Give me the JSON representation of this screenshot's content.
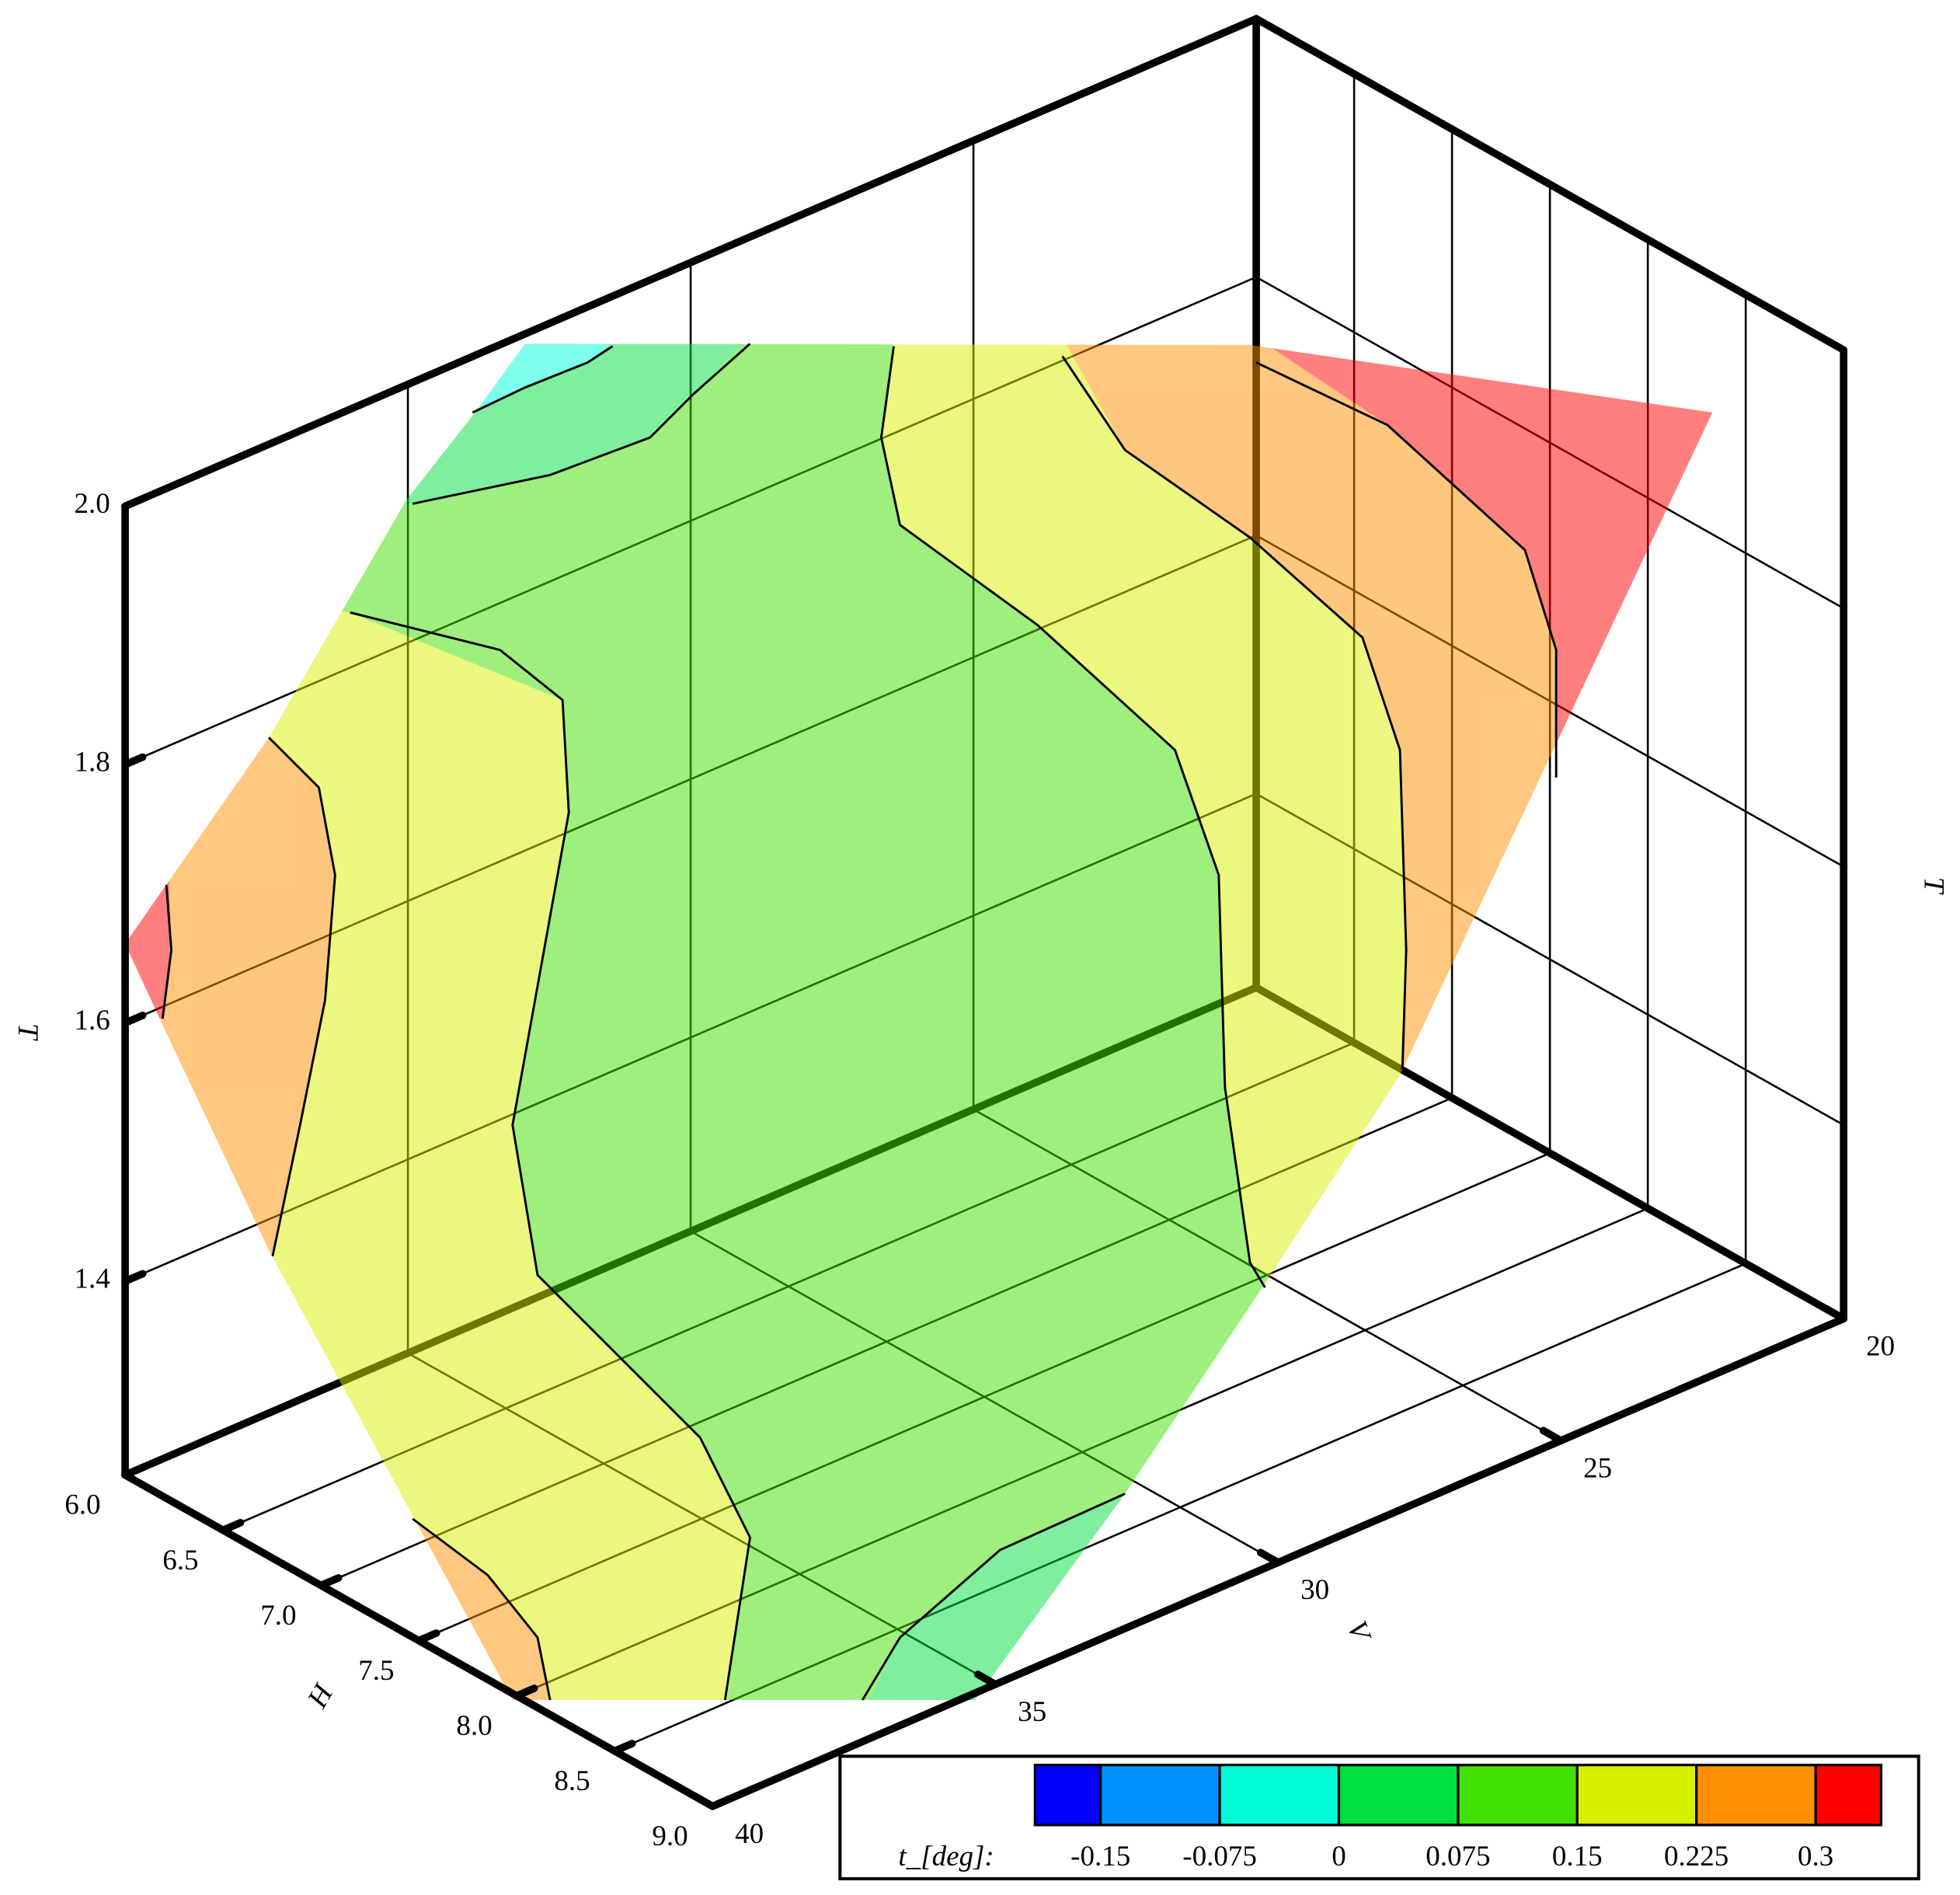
{
  "chart_data": {
    "type": "contour3d",
    "x_label": "H",
    "y_label": "V",
    "z_label": "T",
    "xlim": [
      6,
      9
    ],
    "xticks": [
      {
        "value": 6,
        "label": "6.0"
      },
      6.5,
      {
        "value": 7,
        "label": "7.0"
      },
      7.5,
      {
        "value": 8,
        "label": "8.0"
      },
      8.5,
      {
        "value": 9,
        "label": "9.0"
      }
    ],
    "ylim": [
      20,
      40
    ],
    "yticks": [
      20,
      25,
      30,
      35,
      40
    ],
    "zlim": [
      1.25,
      2
    ],
    "zticks": [
      1.4,
      1.6,
      1.8,
      {
        "value": 2,
        "label": "2.0"
      }
    ],
    "legend": {
      "title": "t_[deg]:",
      "levels": [
        -0.15,
        -0.075,
        0,
        0.075,
        0.15,
        0.225,
        0.3
      ],
      "colors": [
        "#0000ff",
        "#0090ff",
        "#00ffd8",
        "#00e040",
        "#40e000",
        "#d8f000",
        "#ff9000",
        "#ff0000"
      ]
    },
    "surface_opacity": 0.5
  }
}
